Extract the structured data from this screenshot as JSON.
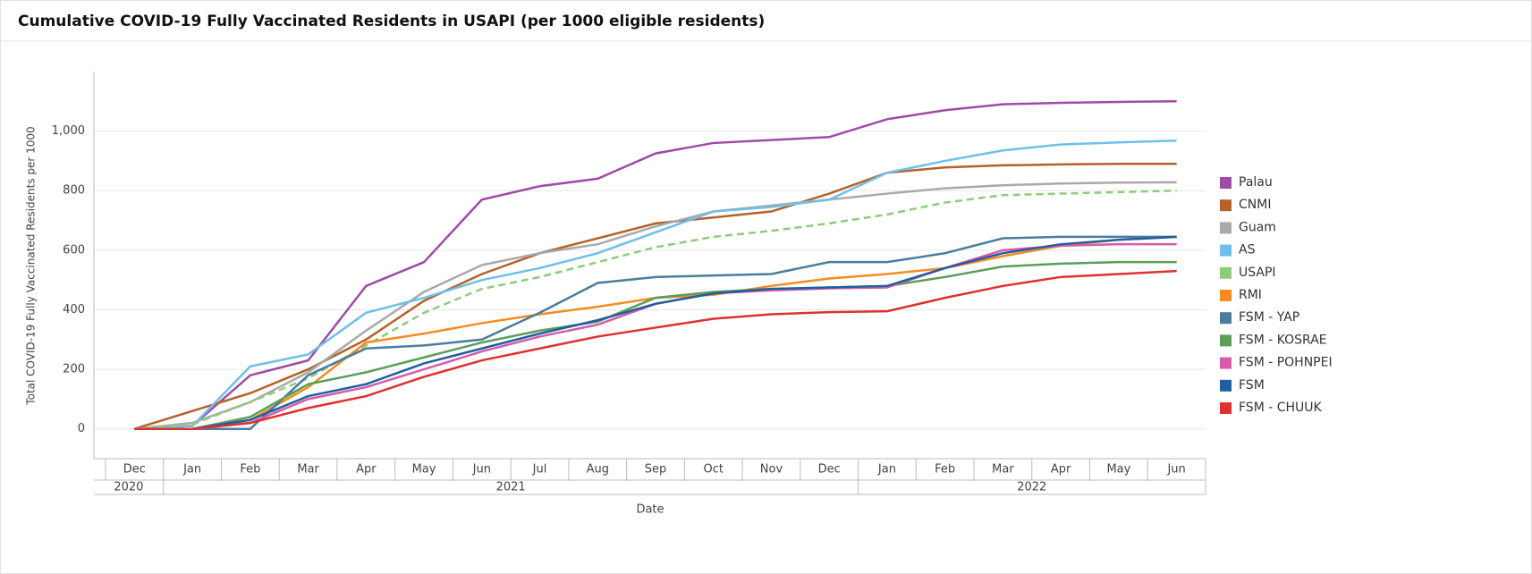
{
  "chart_data": {
    "type": "line",
    "title": "Cumulative COVID-19 Fully Vaccinated Residents in USAPI (per 1000 eligible residents)",
    "y_label": "Total COVID-19 Fully Vaccinated Residents per 1000",
    "x_label": "Date",
    "categories": [
      "Dec",
      "Jan",
      "Feb",
      "Mar",
      "Apr",
      "May",
      "Jun",
      "Jul",
      "Aug",
      "Sep",
      "Oct",
      "Nov",
      "Dec",
      "Jan",
      "Feb",
      "Mar",
      "Apr",
      "May",
      "Jun"
    ],
    "years": [
      "2020",
      "2021",
      "2022"
    ],
    "ylim": [
      -100,
      1200
    ],
    "yticks": [
      0,
      200,
      400,
      600,
      800,
      {
        "value": 1000,
        "label": "1,000"
      }
    ],
    "grid": true,
    "legend": "right",
    "series": [
      {
        "name": "Palau",
        "color": "#a04aa8",
        "values": [
          0,
          10,
          180,
          230,
          480,
          560,
          770,
          815,
          840,
          925,
          960,
          970,
          980,
          1040,
          1070,
          1090,
          1095,
          1098,
          1100
        ]
      },
      {
        "name": "CNMI",
        "color": "#b5612a",
        "values": [
          0,
          60,
          120,
          200,
          300,
          430,
          520,
          590,
          640,
          690,
          710,
          730,
          790,
          860,
          878,
          885,
          888,
          890,
          890
        ]
      },
      {
        "name": "Guam",
        "color": "#a9a9a9",
        "values": [
          0,
          20,
          90,
          190,
          330,
          460,
          550,
          590,
          620,
          680,
          730,
          750,
          770,
          790,
          808,
          818,
          824,
          827,
          828
        ]
      },
      {
        "name": "AS",
        "color": "#6ec0e8",
        "values": [
          0,
          10,
          210,
          250,
          390,
          440,
          500,
          540,
          590,
          660,
          730,
          745,
          770,
          860,
          900,
          935,
          955,
          962,
          968
        ]
      },
      {
        "name": "USAPI",
        "color": "#8fcc7a",
        "dashed": true,
        "values": [
          0,
          15,
          90,
          170,
          280,
          390,
          470,
          510,
          560,
          610,
          645,
          665,
          690,
          720,
          760,
          785,
          790,
          795,
          800
        ]
      },
      {
        "name": "RMI",
        "color": "#f68b1f",
        "values": [
          0,
          0,
          30,
          140,
          290,
          320,
          355,
          385,
          410,
          440,
          450,
          480,
          505,
          520,
          540,
          580,
          615,
          635,
          645
        ]
      },
      {
        "name": "FSM - YAP",
        "color": "#4a7d9e",
        "values": [
          0,
          0,
          0,
          180,
          270,
          280,
          300,
          390,
          490,
          510,
          515,
          520,
          560,
          560,
          590,
          640,
          645,
          645,
          645
        ]
      },
      {
        "name": "FSM - KOSRAE",
        "color": "#5a9e5a",
        "values": [
          0,
          0,
          40,
          150,
          190,
          240,
          290,
          330,
          360,
          440,
          460,
          470,
          475,
          480,
          510,
          545,
          555,
          560,
          560
        ]
      },
      {
        "name": "FSM - POHNPEI",
        "color": "#d65ca8",
        "values": [
          0,
          0,
          20,
          100,
          140,
          200,
          260,
          310,
          350,
          420,
          455,
          465,
          472,
          475,
          540,
          600,
          615,
          620,
          620
        ]
      },
      {
        "name": "FSM",
        "color": "#1f5fa0",
        "values": [
          0,
          0,
          30,
          110,
          150,
          220,
          270,
          320,
          365,
          420,
          455,
          470,
          475,
          480,
          540,
          590,
          620,
          635,
          645
        ]
      },
      {
        "name": "FSM - CHUUK",
        "color": "#e03030",
        "values": [
          0,
          0,
          20,
          70,
          110,
          175,
          230,
          270,
          310,
          340,
          370,
          385,
          392,
          395,
          440,
          480,
          510,
          520,
          530
        ]
      }
    ]
  }
}
